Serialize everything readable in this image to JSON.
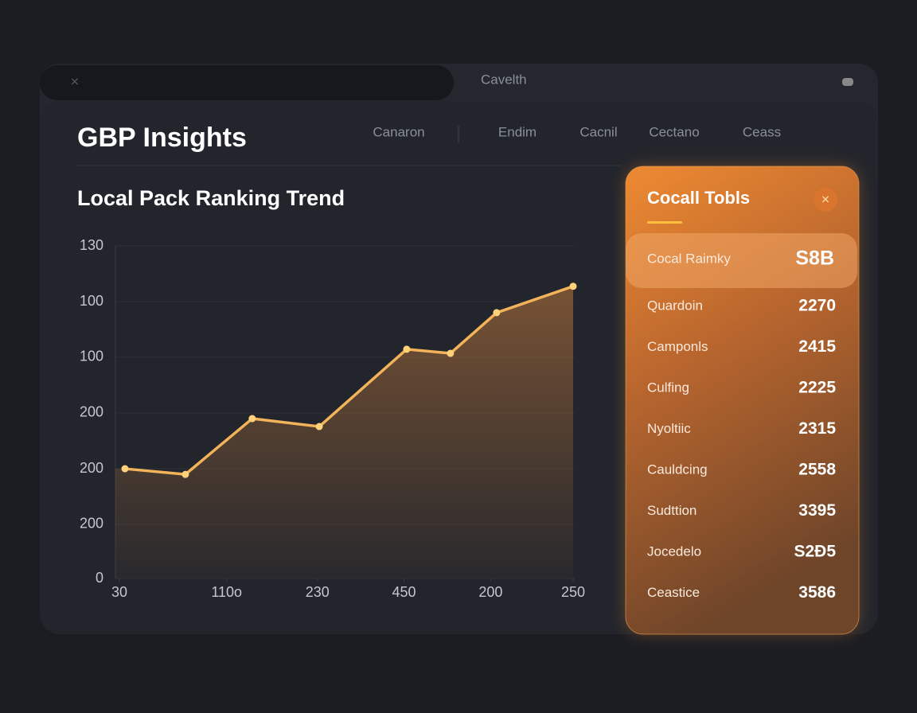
{
  "top_bar": {
    "search_label": "Cavelth"
  },
  "header": {
    "title": "GBP Insights",
    "nav": [
      "Canaron",
      "Endim",
      "Cacnil",
      "Cectano",
      "Ceass"
    ]
  },
  "chart_data": {
    "type": "line",
    "title": "Local Pack Ranking Trend",
    "x": [
      32.7,
      62,
      94.4,
      126.9,
      169.3,
      190.5,
      212.9,
      250
    ],
    "series": [
      {
        "name": "Ranking",
        "color": "#f2b35a",
        "values": [
          42.9,
          40.7,
          62.5,
          59.4,
          89.6,
          88.0,
          103.9,
          114.2
        ]
      }
    ],
    "xlim": [
      30,
      250
    ],
    "xticks": [
      30,
      {
        "value": 82,
        "label": "110o"
      },
      {
        "value": 126,
        "label": "230"
      },
      {
        "value": 168,
        "label": "450"
      },
      {
        "value": 210,
        "label": "200"
      },
      250
    ],
    "ylim": [
      0,
      130
    ],
    "yticks": [
      0,
      {
        "value": 21.2,
        "label": "200"
      },
      {
        "value": 42.9,
        "label": "200"
      },
      {
        "value": 64.7,
        "label": "200"
      },
      {
        "value": 86.5,
        "label": "100"
      },
      {
        "value": 108.2,
        "label": "100"
      },
      130
    ],
    "grid": true
  },
  "panel": {
    "title": "Cocall Tobls",
    "highlight": {
      "name": "Cocal Raimky",
      "value": "S8B"
    },
    "rows": [
      {
        "name": "Quardoin",
        "value": "2270"
      },
      {
        "name": "Camponls",
        "value": "2415"
      },
      {
        "name": "Culfing",
        "value": "2225"
      },
      {
        "name": "Nyoltiic",
        "value": "2315"
      },
      {
        "name": "Cauldcing",
        "value": "2558"
      },
      {
        "name": "Sudttion",
        "value": "3395"
      },
      {
        "name": "Jocedelo",
        "value": "S2Ð5"
      },
      {
        "name": "Ceastice",
        "value": "3586"
      }
    ]
  }
}
